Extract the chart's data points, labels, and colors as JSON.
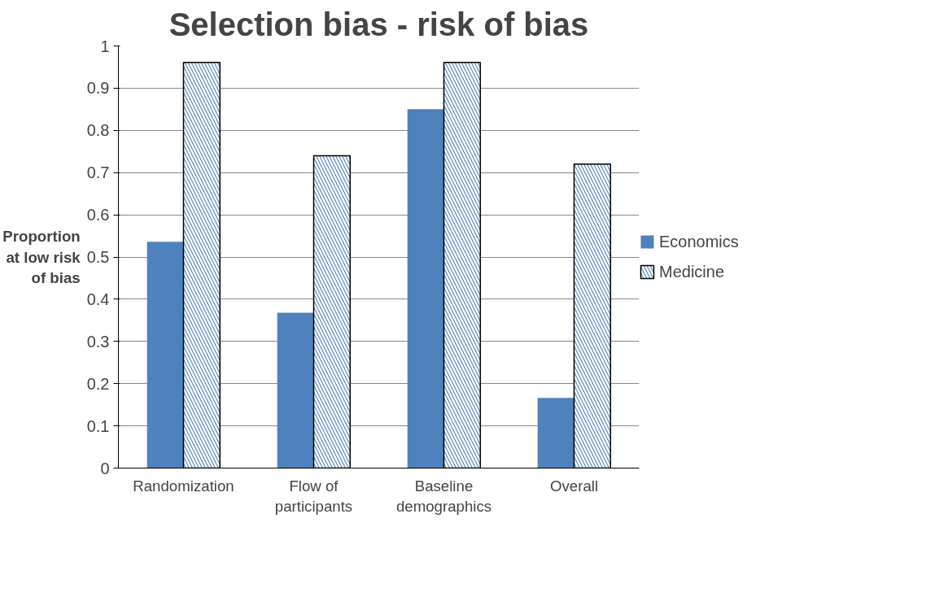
{
  "chart_data": {
    "type": "bar",
    "title": "Selection bias - risk of bias",
    "ylabel": "Proportion\nat low risk\nof bias",
    "categories": [
      "Randomization",
      "Flow of\nparticipants",
      "Baseline\ndemographics",
      "Overall"
    ],
    "series": [
      {
        "name": "Economics",
        "color": "#4f81bd",
        "values": [
          0.536,
          0.368,
          0.85,
          0.166
        ]
      },
      {
        "name": "Medicine",
        "color": "#4f81bd",
        "values": [
          0.961,
          0.74,
          0.961,
          0.72
        ]
      }
    ],
    "ylim": [
      0,
      1
    ],
    "yticks": [
      0,
      0.1,
      0.2,
      0.3,
      0.4,
      0.5,
      0.6,
      0.7,
      0.8,
      0.9,
      1
    ],
    "grid": "y",
    "legend": "right"
  }
}
